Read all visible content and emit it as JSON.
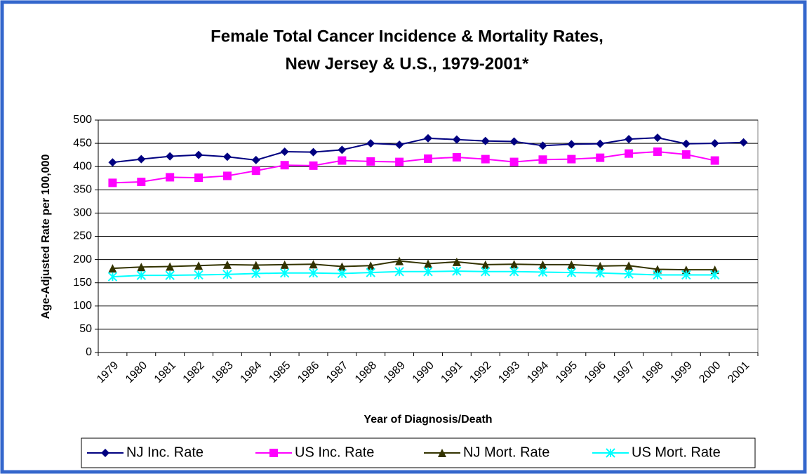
{
  "chart_data": {
    "type": "line",
    "title": [
      "Female Total Cancer Incidence & Mortality Rates,",
      "New Jersey & U.S., 1979-2001*"
    ],
    "x_label": "Year of Diagnosis/Death",
    "y_label": "Age-Adjusted Rate per 100,000",
    "categories": [
      "1979",
      "1980",
      "1981",
      "1982",
      "1983",
      "1984",
      "1985",
      "1986",
      "1987",
      "1988",
      "1989",
      "1990",
      "1991",
      "1992",
      "1993",
      "1994",
      "1995",
      "1996",
      "1997",
      "1998",
      "1999",
      "2000",
      "2001"
    ],
    "ylim": [
      0,
      500
    ],
    "yticks": [
      0,
      50,
      100,
      150,
      200,
      250,
      300,
      350,
      400,
      450,
      500
    ],
    "grid": true,
    "legend": "bottom",
    "series": [
      {
        "name": "NJ Inc. Rate",
        "color": "#000080",
        "marker": "diamond",
        "values": [
          409,
          416,
          422,
          425,
          421,
          414,
          432,
          431,
          436,
          450,
          447,
          461,
          458,
          455,
          454,
          445,
          448,
          449,
          459,
          462,
          449,
          450,
          452
        ]
      },
      {
        "name": "US Inc. Rate",
        "color": "#ff00ff",
        "marker": "square",
        "values": [
          365,
          367,
          377,
          376,
          380,
          391,
          403,
          402,
          413,
          411,
          410,
          417,
          420,
          416,
          410,
          415,
          416,
          419,
          428,
          432,
          426,
          413,
          null
        ]
      },
      {
        "name": "NJ Mort. Rate",
        "color": "#333300",
        "marker": "triangle",
        "values": [
          181,
          184,
          185,
          187,
          189,
          188,
          189,
          190,
          185,
          187,
          197,
          191,
          195,
          189,
          190,
          189,
          189,
          186,
          187,
          179,
          178,
          178,
          null
        ]
      },
      {
        "name": "US Mort. Rate",
        "color": "#00ffff",
        "marker": "asterisk",
        "values": [
          163,
          166,
          166,
          167,
          168,
          170,
          171,
          171,
          170,
          172,
          174,
          174,
          175,
          174,
          174,
          173,
          172,
          171,
          169,
          167,
          167,
          167,
          null
        ]
      }
    ]
  }
}
